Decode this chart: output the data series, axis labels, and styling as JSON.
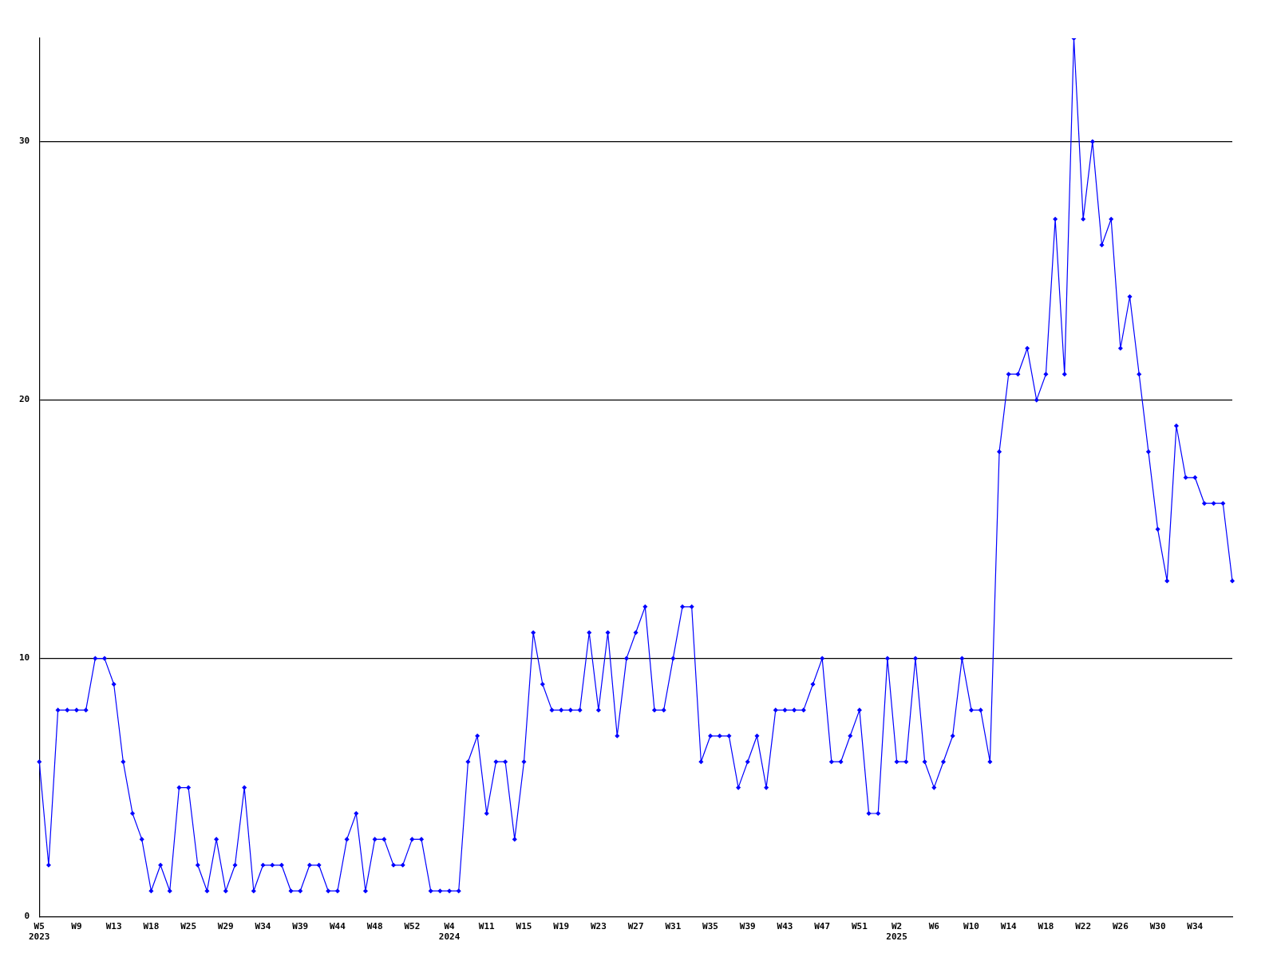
{
  "chart_data": {
    "type": "line",
    "categories": [
      "W5\n2023",
      null,
      null,
      null,
      "W9",
      null,
      null,
      null,
      "W13",
      null,
      null,
      null,
      "W18",
      null,
      null,
      null,
      "W25",
      null,
      null,
      null,
      "W29",
      null,
      null,
      null,
      "W34",
      null,
      null,
      null,
      "W39",
      null,
      null,
      null,
      "W44",
      null,
      null,
      null,
      "W48",
      null,
      null,
      null,
      "W52",
      null,
      null,
      null,
      "W4\n2024",
      null,
      null,
      null,
      "W11",
      null,
      null,
      null,
      "W15",
      null,
      null,
      null,
      "W19",
      null,
      null,
      null,
      "W23",
      null,
      null,
      null,
      "W27",
      null,
      null,
      null,
      "W31",
      null,
      null,
      null,
      "W35",
      null,
      null,
      null,
      "W39",
      null,
      null,
      null,
      "W43",
      null,
      null,
      null,
      "W47",
      null,
      null,
      null,
      "W51",
      null,
      null,
      null,
      "W2\n2025",
      null,
      null,
      null,
      "W6",
      null,
      null,
      null,
      "W10",
      null,
      null,
      null,
      "W14",
      null,
      null,
      null,
      "W18",
      null,
      null,
      null,
      "W22",
      null,
      null,
      null,
      "W26",
      null,
      null,
      null,
      "W30",
      null,
      null,
      null,
      "W34",
      null,
      null,
      null,
      null
    ],
    "series": [
      {
        "color": "#0000ff",
        "values": [
          6,
          2,
          8,
          8,
          8,
          8,
          10,
          10,
          9,
          6,
          4,
          3,
          1,
          2,
          1,
          5,
          5,
          2,
          1,
          3,
          1,
          2,
          5,
          1,
          2,
          2,
          2,
          1,
          1,
          2,
          2,
          1,
          1,
          3,
          4,
          1,
          3,
          3,
          2,
          2,
          3,
          3,
          1,
          1,
          1,
          1,
          6,
          7,
          4,
          6,
          6,
          3,
          6,
          11,
          9,
          8,
          8,
          8,
          8,
          11,
          8,
          11,
          7,
          10,
          11,
          12,
          8,
          8,
          10,
          12,
          12,
          6,
          7,
          7,
          7,
          5,
          6,
          7,
          5,
          8,
          8,
          8,
          8,
          9,
          10,
          6,
          6,
          7,
          8,
          4,
          4,
          10,
          6,
          6,
          10,
          6,
          5,
          6,
          7,
          10,
          8,
          8,
          6,
          18,
          21,
          21,
          22,
          20,
          21,
          27,
          21,
          34,
          27,
          30,
          26,
          27,
          22,
          24,
          21,
          18,
          15,
          13,
          19,
          17,
          17,
          16,
          16,
          16,
          13
        ]
      }
    ],
    "ylim": [
      0,
      34
    ],
    "yticks": [
      0,
      10,
      20,
      30
    ],
    "grid": "y",
    "legend": false,
    "marker": "diamond",
    "line_style": "solid"
  }
}
